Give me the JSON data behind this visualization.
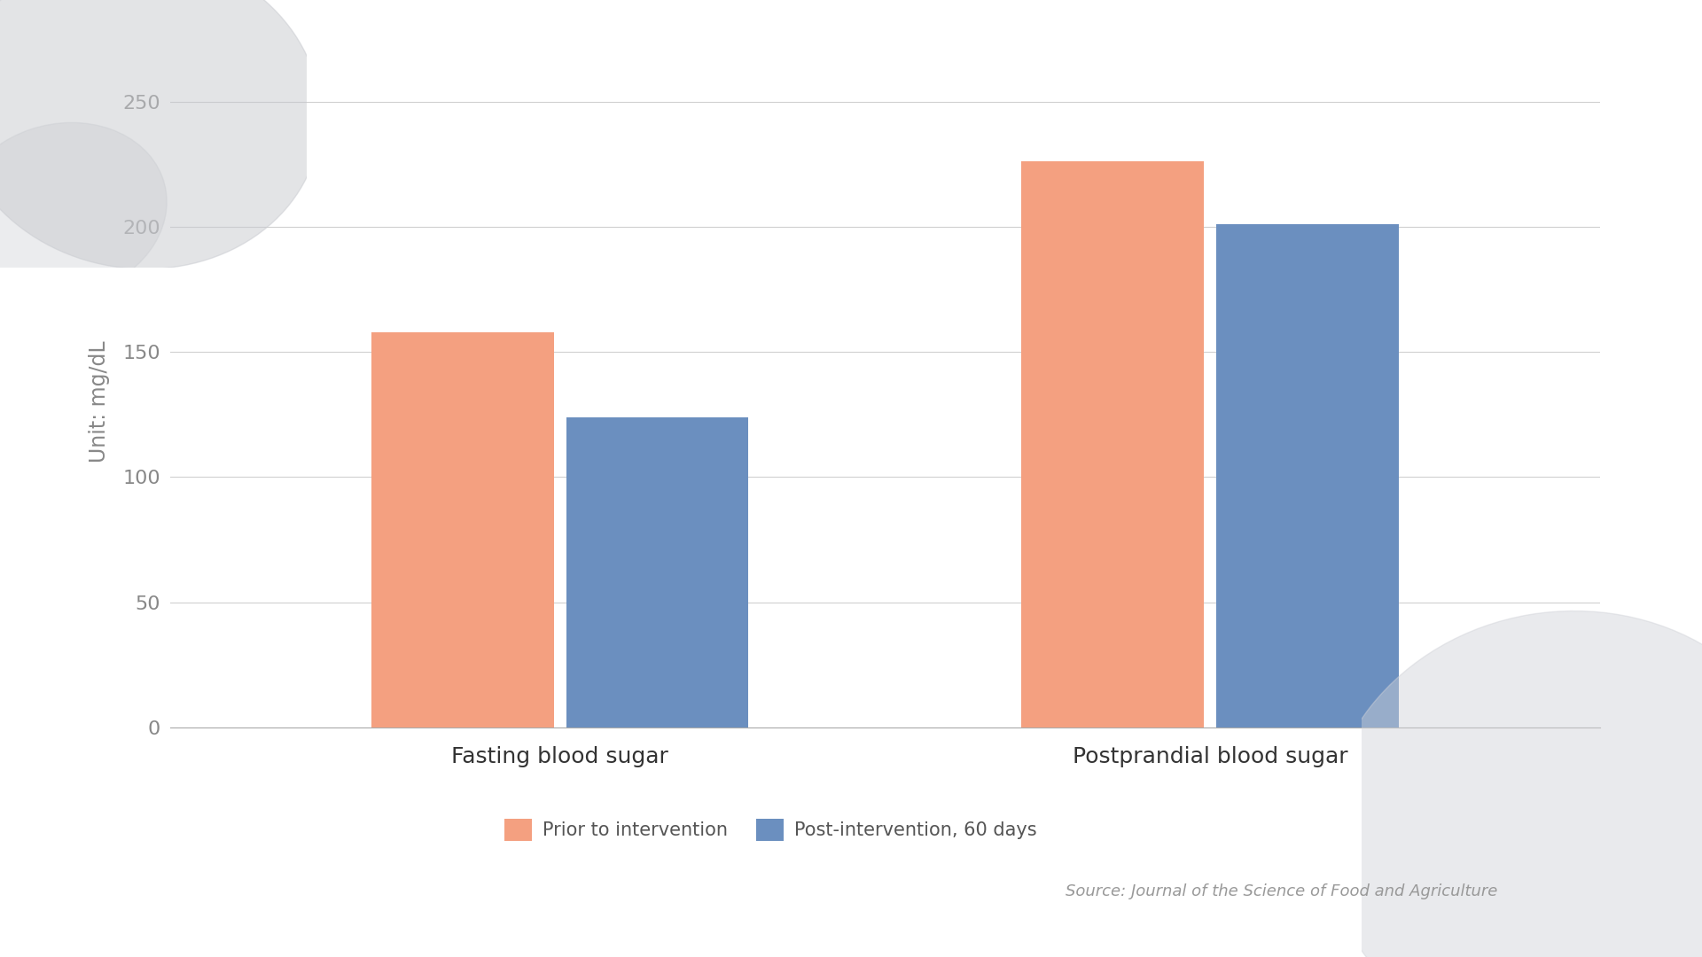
{
  "categories": [
    "Fasting blood sugar",
    "Postprandial blood sugar"
  ],
  "prior_values": [
    158,
    226
  ],
  "post_values": [
    124,
    201
  ],
  "prior_color": "#F4A080",
  "post_color": "#6B8FBF",
  "ylabel": "Unit: mg/dL",
  "ylim": [
    0,
    260
  ],
  "yticks": [
    0,
    50,
    100,
    150,
    200,
    250
  ],
  "legend_labels": [
    "Prior to intervention",
    "Post-intervention, 60 days"
  ],
  "source_text": "Source: Journal of the Science of Food and Agriculture",
  "background_color": "#FFFFFF",
  "grid_color": "#D0D0D0",
  "bar_width": 0.28,
  "axis_label_fontsize": 17,
  "tick_fontsize": 16,
  "legend_fontsize": 15,
  "source_fontsize": 13,
  "category_fontsize": 18,
  "blob_tl_color": "#C8CACF",
  "blob_br_color": "#D0D2D8"
}
